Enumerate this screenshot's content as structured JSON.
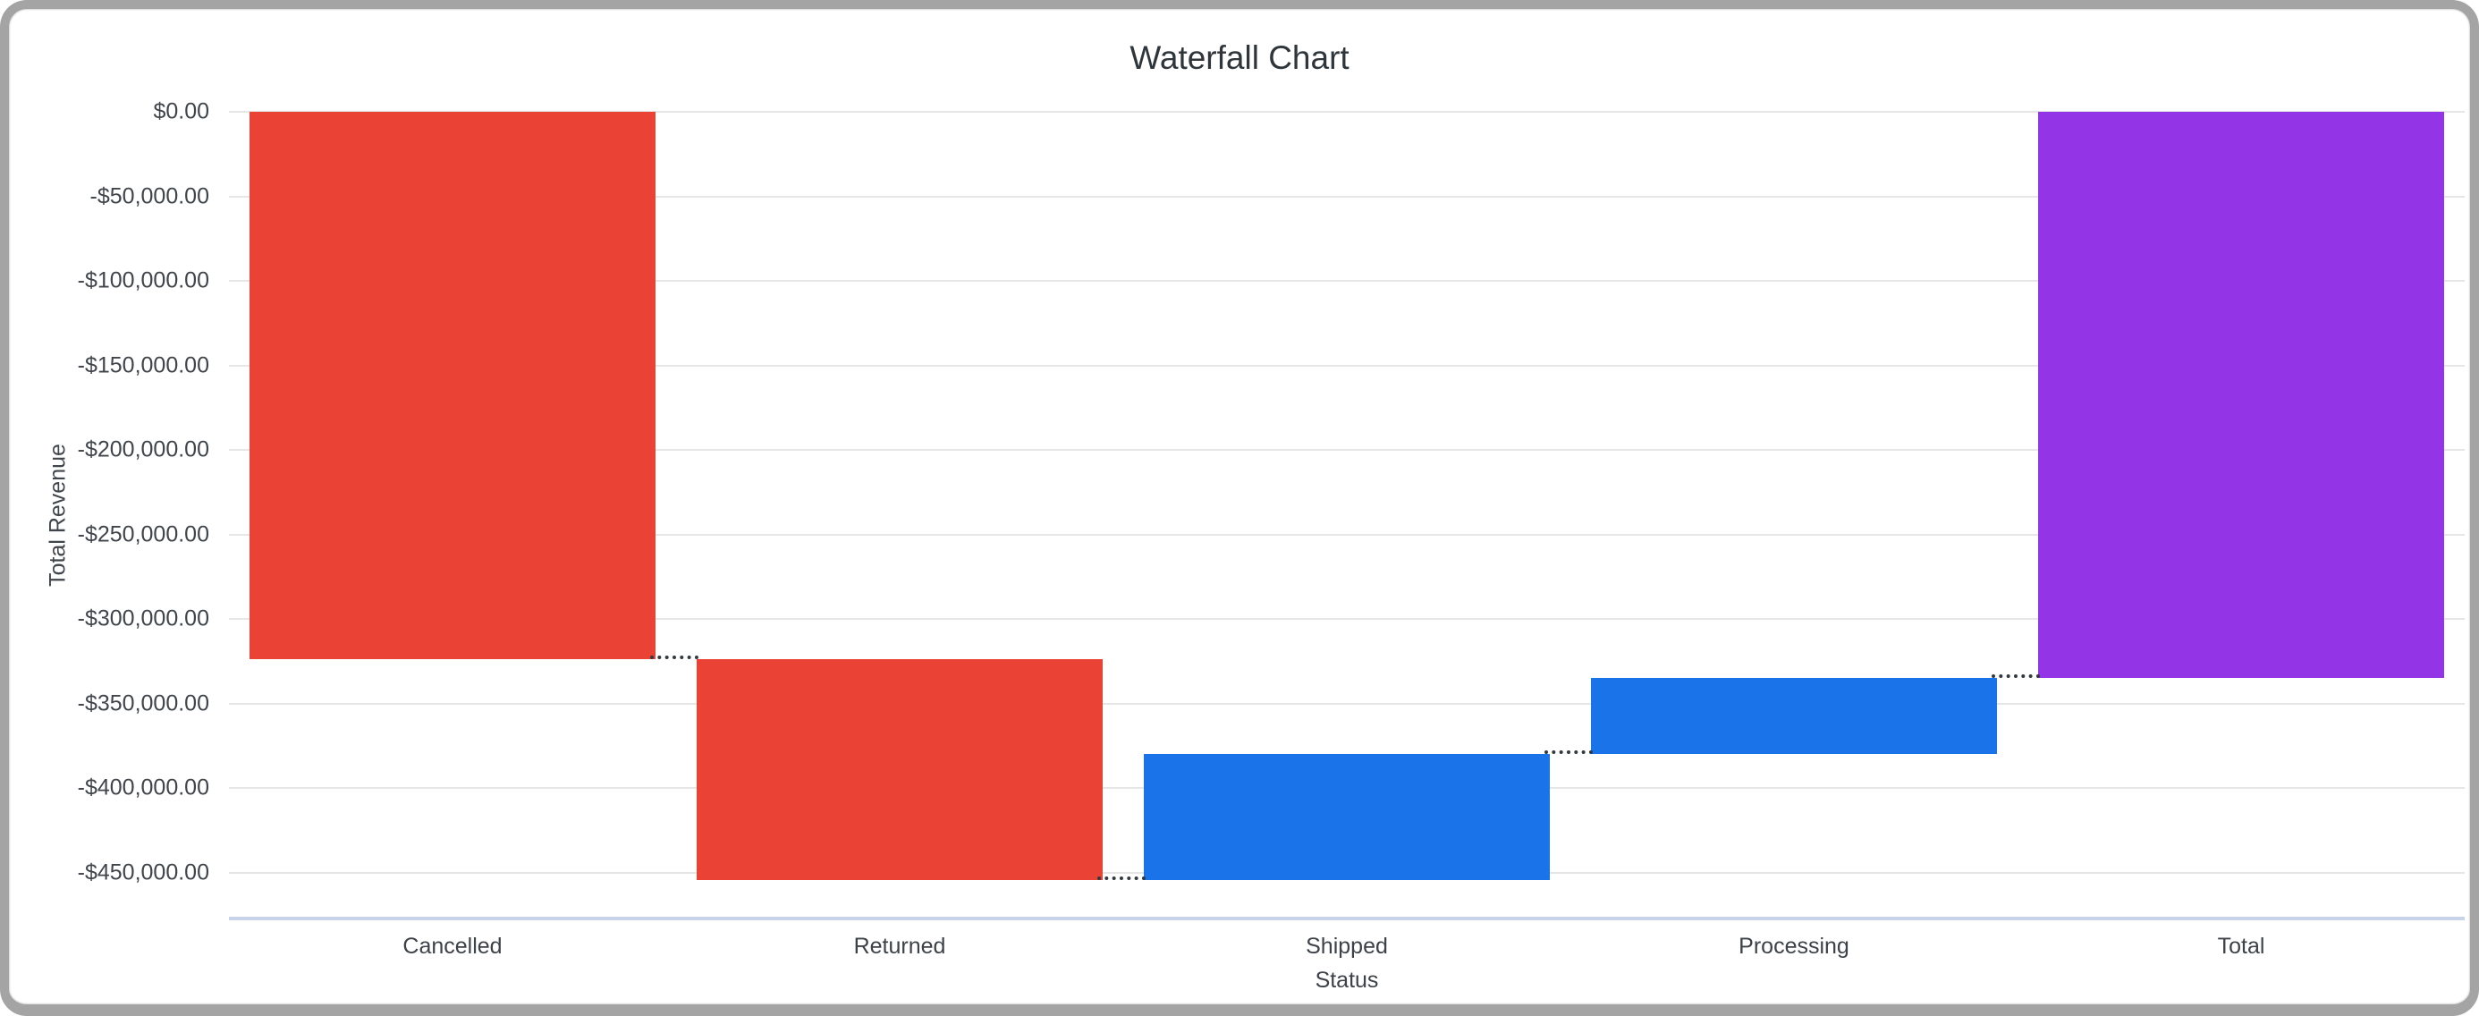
{
  "chart_data": {
    "type": "waterfall",
    "title": "Waterfall Chart",
    "xlabel": "Status",
    "ylabel": "Total Revenue",
    "categories": [
      "Cancelled",
      "Returned",
      "Shipped",
      "Processing",
      "Total"
    ],
    "bars": [
      {
        "label": "Cancelled",
        "role": "decrease",
        "delta": -323800,
        "start": 0,
        "end": -323800,
        "cumulative": -323800
      },
      {
        "label": "Returned",
        "role": "decrease",
        "delta": -130200,
        "start": -323800,
        "end": -454000,
        "cumulative": -454000
      },
      {
        "label": "Shipped",
        "role": "increase",
        "delta": 74500,
        "start": -454000,
        "end": -379500,
        "cumulative": -379500
      },
      {
        "label": "Processing",
        "role": "increase",
        "delta": 45000,
        "start": -379500,
        "end": -334500,
        "cumulative": -334500
      },
      {
        "label": "Total",
        "role": "total",
        "delta": -334500,
        "start": 0,
        "end": -334500,
        "cumulative": -334500
      }
    ],
    "y_ticks": [
      {
        "value": 0,
        "label": "$0.00"
      },
      {
        "value": -50000,
        "label": "-$50,000.00"
      },
      {
        "value": -100000,
        "label": "-$100,000.00"
      },
      {
        "value": -150000,
        "label": "-$150,000.00"
      },
      {
        "value": -200000,
        "label": "-$200,000.00"
      },
      {
        "value": -250000,
        "label": "-$250,000.00"
      },
      {
        "value": -300000,
        "label": "-$300,000.00"
      },
      {
        "value": -350000,
        "label": "-$350,000.00"
      },
      {
        "value": -400000,
        "label": "-$400,000.00"
      },
      {
        "value": -450000,
        "label": "-$450,000.00"
      }
    ],
    "ylim": [
      0,
      -477000
    ],
    "grid": true,
    "legend": "none",
    "connector_style": "dotted",
    "colors": {
      "decrease": "#EA4335",
      "increase": "#1A73E8",
      "total": "#9334E6",
      "gridline": "#E6E6E6",
      "baseline": "#C9D3EC",
      "connector": "#333A3F",
      "title_text": "#2E353B",
      "axis_text": "#40454B",
      "card_border": "#A4A4A4"
    }
  }
}
